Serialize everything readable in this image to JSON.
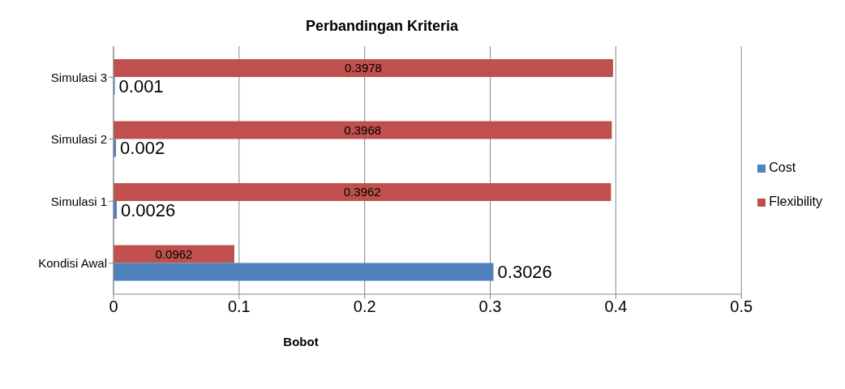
{
  "chart_data": {
    "type": "bar",
    "orientation": "horizontal",
    "title": "Perbandingan Kriteria",
    "xlabel": "Bobot",
    "categories": [
      "Simulasi 3",
      "Simulasi 2",
      "Simulasi 1",
      "Kondisi Awal"
    ],
    "series": [
      {
        "name": "Flexibility",
        "color": "#c0504d",
        "values": [
          0.3978,
          0.3968,
          0.3962,
          0.0962
        ]
      },
      {
        "name": "Cost",
        "color": "#4f81bd",
        "values": [
          0.001,
          0.002,
          0.0026,
          0.3026
        ]
      }
    ],
    "xlim": [
      0,
      0.5
    ],
    "xticks": [
      0,
      0.1,
      0.2,
      0.3,
      0.4,
      0.5
    ],
    "grid": "x",
    "legend": "right",
    "data_labels": true
  }
}
